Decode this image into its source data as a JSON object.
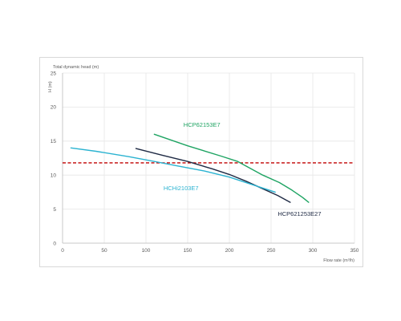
{
  "chart_data": {
    "type": "line",
    "title": "",
    "ylabel_top": "Total dynamic head (m)",
    "ylabel_unit": "H (m)",
    "xlabel": "Flow rate (m³/h)",
    "xlim": [
      0,
      350
    ],
    "ylim": [
      0,
      25
    ],
    "xticks": [
      "0",
      "50",
      "100",
      "150",
      "200",
      "250",
      "300",
      "350"
    ],
    "yticks": [
      "0",
      "5",
      "10",
      "15",
      "20",
      "25"
    ],
    "grid": true,
    "reference_line": {
      "y": 11.8,
      "style": "dashed",
      "color": "#c00000"
    },
    "series": [
      {
        "name": "HCP62153E7",
        "color": "#1fa463",
        "x": [
          110,
          150,
          190,
          210,
          225,
          240,
          260,
          275,
          288,
          295
        ],
        "y": [
          16.0,
          14.3,
          12.8,
          12.0,
          11.0,
          10.0,
          8.9,
          7.8,
          6.7,
          6.0
        ]
      },
      {
        "name": "HCP621253E27",
        "color": "#1f2a44",
        "x": [
          88,
          120,
          150,
          180,
          200,
          220,
          240,
          258,
          273
        ],
        "y": [
          13.9,
          12.9,
          12.0,
          10.9,
          10.1,
          9.1,
          8.0,
          7.0,
          6.0
        ]
      },
      {
        "name": "HCHi2103E7",
        "color": "#2bb3d1",
        "x": [
          10,
          40,
          80,
          110,
          140,
          170,
          200,
          230,
          255
        ],
        "y": [
          14.0,
          13.5,
          12.7,
          12.0,
          11.3,
          10.6,
          9.7,
          8.5,
          7.5
        ]
      }
    ]
  }
}
